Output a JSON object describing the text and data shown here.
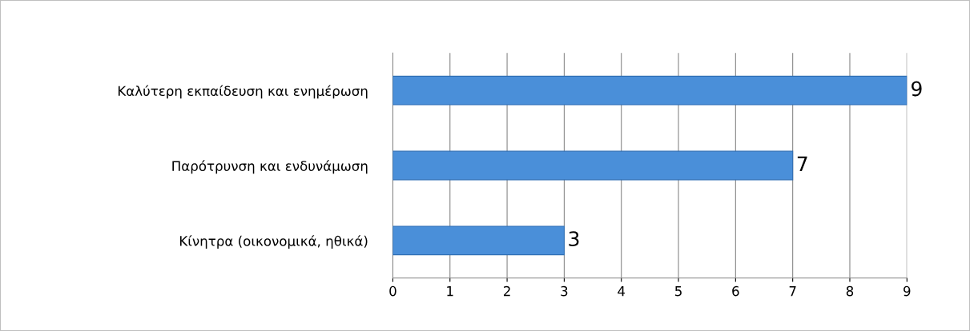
{
  "chart_data": {
    "type": "bar",
    "orientation": "horizontal",
    "categories": [
      "Καλύτερη εκπαίδευση και ενημέρωση",
      "Παρότρυνση και ενδυνάμωση",
      "Κίνητρα (οικονομικά, ηθικά)"
    ],
    "values": [
      9,
      7,
      3
    ],
    "color": "#4a8fd9",
    "xlim": [
      0,
      9
    ],
    "xticks": [
      0,
      1,
      2,
      3,
      4,
      5,
      6,
      7,
      8,
      9
    ],
    "grid": "x",
    "data_labels": true,
    "legend": false
  }
}
